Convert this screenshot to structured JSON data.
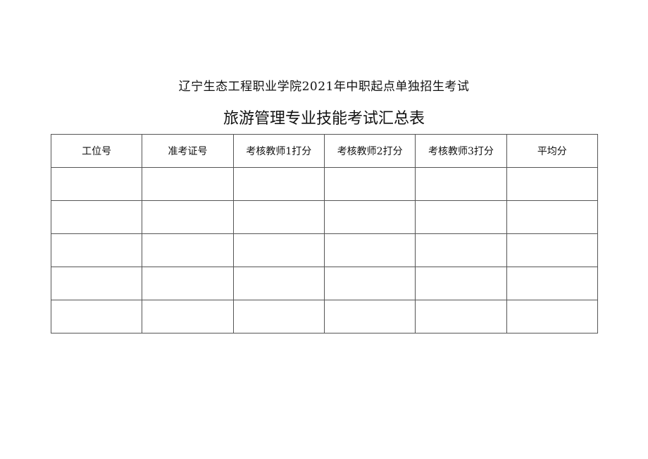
{
  "document": {
    "subtitle": "辽宁生态工程职业学院2021年中职起点单独招生考试",
    "title": "旅游管理专业技能考试汇总表"
  },
  "table": {
    "headers": [
      "工位号",
      "准考证号",
      "考核教师1打分",
      "考核教师2打分",
      "考核教师3打分",
      "平均分"
    ],
    "rows": [
      [
        "",
        "",
        "",
        "",
        "",
        ""
      ],
      [
        "",
        "",
        "",
        "",
        "",
        ""
      ],
      [
        "",
        "",
        "",
        "",
        "",
        ""
      ],
      [
        "",
        "",
        "",
        "",
        "",
        ""
      ],
      [
        "",
        "",
        "",
        "",
        "",
        ""
      ]
    ]
  }
}
